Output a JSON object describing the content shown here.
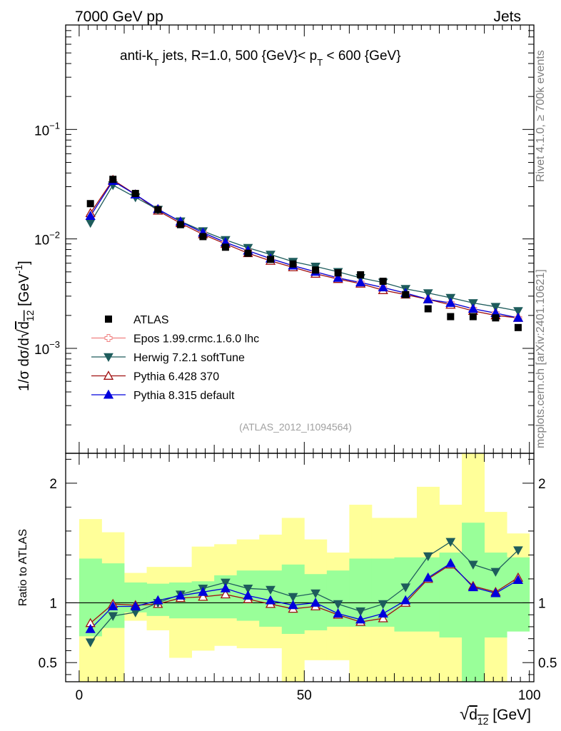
{
  "header": {
    "left": "7000 GeV pp",
    "right": "Jets"
  },
  "side_text": {
    "rivet": "Rivet 4.1.0, ≥ 700k events",
    "source": "mcplots.cern.ch [arXiv:2401.10621]"
  },
  "chart_data": {
    "type": "line",
    "title": "anti-k_T jets, R=1.0, 500 {GeV}< p_T < 600 {GeV}",
    "title_parts": {
      "a": "anti-k",
      "a_sub": "T",
      "b": " jets, R=1.0, 500 {GeV}< p",
      "b_sub": "T",
      "c": " < 600 {GeV}"
    },
    "analysis_tag": "(ATLAS_2012_I1094564)",
    "xlabel": "√d12 [GeV]",
    "xlabel_parts": {
      "main": "d",
      "sub": "12",
      "unit": " [GeV]"
    },
    "ylabel_main": "1/σ dσ/d√d12 [GeV^-1]",
    "ylabel_parts": {
      "pre": "1/σ dσ/d",
      "var": "d",
      "sub": "12",
      "unit": " [GeV",
      "exp": "-1",
      "close": "]"
    },
    "ylabel_ratio": "Ratio to ATLAS",
    "xlim": [
      -3,
      101
    ],
    "ylim_main": [
      0.00011,
      0.9
    ],
    "ylim_ratio": [
      0.34,
      2.25
    ],
    "yscale_main": "log",
    "x_ticks": [
      0,
      50,
      100
    ],
    "main_y_ticks": [
      {
        "value": 0.001,
        "mant": "10",
        "exp": "−3"
      },
      {
        "value": 0.01,
        "mant": "10",
        "exp": "−2"
      },
      {
        "value": 0.1,
        "mant": "10",
        "exp": "−1"
      }
    ],
    "ratio_y_ticks": [
      "0.5",
      "1",
      "2"
    ],
    "x": [
      2.5,
      7.5,
      12.5,
      17.5,
      22.5,
      27.5,
      32.5,
      37.5,
      42.5,
      47.5,
      52.5,
      57.5,
      62.5,
      67.5,
      72.5,
      77.5,
      82.5,
      87.5,
      92.5,
      97.5
    ],
    "bin_edges": [
      0,
      5,
      10,
      15,
      20,
      25,
      30,
      35,
      40,
      45,
      50,
      55,
      60,
      65,
      70,
      75,
      80,
      85,
      90,
      95,
      100
    ],
    "reference": {
      "name": "ATLAS",
      "values": [
        0.021,
        0.035,
        0.026,
        0.0185,
        0.0135,
        0.0105,
        0.0084,
        0.0074,
        0.0065,
        0.0059,
        0.0052,
        0.0049,
        0.0047,
        0.0041,
        0.0031,
        0.0023,
        0.00195,
        0.00195,
        0.0019,
        0.00155
      ]
    },
    "series": [
      {
        "name": "Epos 1.99.crmc.1.6.0 lhc",
        "color": "#f08080",
        "marker": "cross-open",
        "values": [
          0.0162,
          0.0338,
          0.0254,
          0.0187,
          0.0144,
          0.0114,
          0.0093,
          0.0078,
          0.0066,
          0.0057,
          0.005,
          0.0044,
          0.004,
          0.0036,
          0.0032,
          0.0028,
          0.0026,
          0.0023,
          0.0021,
          0.0019
        ],
        "ratio_visible": false
      },
      {
        "name": "Herwig 7.2.1 softTune",
        "color": "#1e5c5c",
        "marker": "triangle-down-filled",
        "values": [
          0.014,
          0.031,
          0.024,
          0.0185,
          0.0145,
          0.0118,
          0.0098,
          0.0083,
          0.0072,
          0.0062,
          0.0056,
          0.005,
          0.0044,
          0.004,
          0.0035,
          0.0032,
          0.0029,
          0.0026,
          0.0024,
          0.0022
        ],
        "ratio": [
          0.67,
          0.89,
          0.92,
          1.0,
          1.07,
          1.12,
          1.17,
          1.12,
          1.11,
          1.05,
          1.08,
          0.99,
          0.93,
          0.99,
          1.13,
          1.39,
          1.51,
          1.32,
          1.26,
          1.44
        ]
      },
      {
        "name": "Pythia 6.428 370",
        "color": "#a01010",
        "marker": "triangle-up-open",
        "values": [
          0.0172,
          0.0346,
          0.0255,
          0.0181,
          0.0139,
          0.011,
          0.009,
          0.0074,
          0.0063,
          0.0055,
          0.0048,
          0.0043,
          0.0039,
          0.0034,
          0.0031,
          0.0028,
          0.0025,
          0.0022,
          0.002,
          0.0019
        ],
        "ratio": [
          0.83,
          0.99,
          0.98,
          0.99,
          1.04,
          1.05,
          1.07,
          1.03,
          0.99,
          0.95,
          0.97,
          0.9,
          0.84,
          0.87,
          1.0,
          1.2,
          1.32,
          1.14,
          1.09,
          1.21
        ]
      },
      {
        "name": "Pythia 8.315 default",
        "color": "#0000dd",
        "marker": "triangle-up-filled",
        "values": [
          0.0162,
          0.0338,
          0.0254,
          0.0187,
          0.0144,
          0.0114,
          0.0093,
          0.0078,
          0.0066,
          0.0057,
          0.005,
          0.0044,
          0.004,
          0.0036,
          0.0032,
          0.0028,
          0.0026,
          0.0023,
          0.0021,
          0.0019
        ],
        "ratio": [
          0.78,
          0.97,
          0.97,
          1.02,
          1.06,
          1.09,
          1.12,
          1.06,
          1.02,
          0.98,
          1.0,
          0.91,
          0.86,
          0.91,
          1.02,
          1.21,
          1.33,
          1.13,
          1.08,
          1.19
        ]
      }
    ],
    "bands": {
      "green_low": [
        0.72,
        0.79,
        0.92,
        0.89,
        0.87,
        0.87,
        0.87,
        0.85,
        0.8,
        0.74,
        0.77,
        0.8,
        0.8,
        0.8,
        0.76,
        0.76,
        0.71,
        0.34,
        0.71,
        0.76
      ],
      "green_high": [
        1.37,
        1.33,
        1.17,
        1.16,
        1.17,
        1.18,
        1.23,
        1.27,
        1.27,
        1.32,
        1.24,
        1.27,
        1.37,
        1.37,
        1.38,
        1.38,
        1.42,
        1.67,
        1.42,
        1.38
      ],
      "yellow_low": [
        0.34,
        0.34,
        0.85,
        0.77,
        0.54,
        0.6,
        0.64,
        0.62,
        0.62,
        0.34,
        0.52,
        0.52,
        0.34,
        0.34,
        0.34,
        0.34,
        0.34,
        0.34,
        0.34,
        0.8
      ],
      "yellow_high": [
        1.7,
        1.59,
        1.25,
        1.3,
        1.3,
        1.47,
        1.49,
        1.53,
        1.57,
        1.71,
        1.53,
        1.42,
        1.82,
        1.71,
        1.71,
        1.97,
        1.82,
        2.25,
        1.76,
        1.58
      ]
    }
  }
}
